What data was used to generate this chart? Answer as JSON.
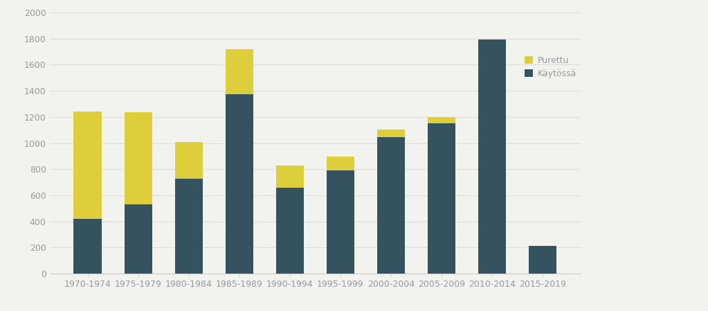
{
  "categories": [
    "1970-1974",
    "1975-1979",
    "1980-1984",
    "1985-1989",
    "1990-1994",
    "1995-1999",
    "2000-2004",
    "2005-2009",
    "2010-2014",
    "2015-2019"
  ],
  "kaytossa": [
    420,
    530,
    725,
    1375,
    660,
    790,
    1045,
    1150,
    1795,
    215
  ],
  "purettu": [
    820,
    705,
    285,
    345,
    170,
    105,
    60,
    50,
    0,
    0
  ],
  "color_kaytossa": "#35535F",
  "color_purettu": "#DECE3A",
  "legend_purettu": "Purettu",
  "legend_kaytossa": "Käytössä",
  "ylim": [
    0,
    2000
  ],
  "yticks": [
    0,
    200,
    400,
    600,
    800,
    1000,
    1200,
    1400,
    1600,
    1800,
    2000
  ],
  "background_color": "#F2F2EF",
  "grid_color": "#DDDDDA",
  "bar_width": 0.55,
  "tick_color": "#999999",
  "spine_color": "#CCCCCC"
}
